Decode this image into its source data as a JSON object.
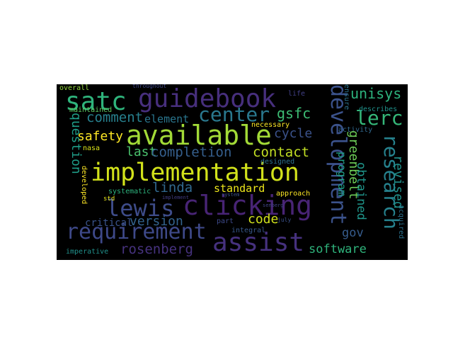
{
  "wordcloud": {
    "background": "#000000",
    "words": [
      {
        "text": "guidebook",
        "color": "#472f7d"
      },
      {
        "text": "satc",
        "color": "#2fb47c"
      },
      {
        "text": "available",
        "color": "#a2da37"
      },
      {
        "text": "implementation",
        "color": "#d2e21b"
      },
      {
        "text": "clicking",
        "color": "#482475"
      },
      {
        "text": "assist",
        "color": "#46317e"
      },
      {
        "text": "lewis",
        "color": "#3e4c8a"
      },
      {
        "text": "requirement",
        "color": "#3e4989"
      },
      {
        "text": "center",
        "color": "#2a788e"
      },
      {
        "text": "development",
        "color": "#3b528b"
      },
      {
        "text": "research",
        "color": "#26828e"
      },
      {
        "text": "lerc",
        "color": "#35b779"
      },
      {
        "text": "unisys",
        "color": "#2db27d"
      },
      {
        "text": "gsfc",
        "color": "#3dbc74"
      },
      {
        "text": "comment",
        "color": "#27808e"
      },
      {
        "text": "element",
        "color": "#2a768e"
      },
      {
        "text": "safety",
        "color": "#fde725"
      },
      {
        "text": "last",
        "color": "#4ac16d"
      },
      {
        "text": "completion",
        "color": "#355f8d"
      },
      {
        "text": "contact",
        "color": "#c2df23"
      },
      {
        "text": "cycle",
        "color": "#3b528b"
      },
      {
        "text": "question",
        "color": "#1f9e89"
      },
      {
        "text": "linda",
        "color": "#31688e"
      },
      {
        "text": "standard",
        "color": "#ece51b"
      },
      {
        "text": "code",
        "color": "#d0e11c"
      },
      {
        "text": "version",
        "color": "#33638d"
      },
      {
        "text": "critical",
        "color": "#3a548c"
      },
      {
        "text": "rosenberg",
        "color": "#46327e"
      },
      {
        "text": "software",
        "color": "#2fb47c"
      },
      {
        "text": "greenbelt",
        "color": "#6ece58"
      },
      {
        "text": "obtained",
        "color": "#1f968b"
      },
      {
        "text": "revised",
        "color": "#21918c"
      },
      {
        "text": "program",
        "color": "#1fa188"
      },
      {
        "text": "gov",
        "color": "#365c8d"
      },
      {
        "text": "overall",
        "color": "#95d840"
      },
      {
        "text": "throughout",
        "color": "#3e4989"
      },
      {
        "text": "life",
        "color": "#424086"
      },
      {
        "text": "ensure",
        "color": "#2c738e"
      },
      {
        "text": "describes",
        "color": "#20928c"
      },
      {
        "text": "activity",
        "color": "#31688e"
      },
      {
        "text": "maintained",
        "color": "#5ec962"
      },
      {
        "text": "necessary",
        "color": "#fde725"
      },
      {
        "text": "nasa",
        "color": "#d8e219"
      },
      {
        "text": "designed",
        "color": "#2c728e"
      },
      {
        "text": "developed",
        "color": "#fde725"
      },
      {
        "text": "systematic",
        "color": "#2db27d"
      },
      {
        "text": "std",
        "color": "#e5e419"
      },
      {
        "text": "implement",
        "color": "#433e85"
      },
      {
        "text": "system",
        "color": "#3b528b"
      },
      {
        "text": "senberg",
        "color": "#414487"
      },
      {
        "text": "approach",
        "color": "#fde725"
      },
      {
        "text": "part",
        "color": "#3e4989"
      },
      {
        "text": "integral",
        "color": "#38588c"
      },
      {
        "text": "july",
        "color": "#3b528b"
      },
      {
        "text": "acquired",
        "color": "#2c728e"
      },
      {
        "text": "imperative",
        "color": "#21918c"
      }
    ]
  }
}
